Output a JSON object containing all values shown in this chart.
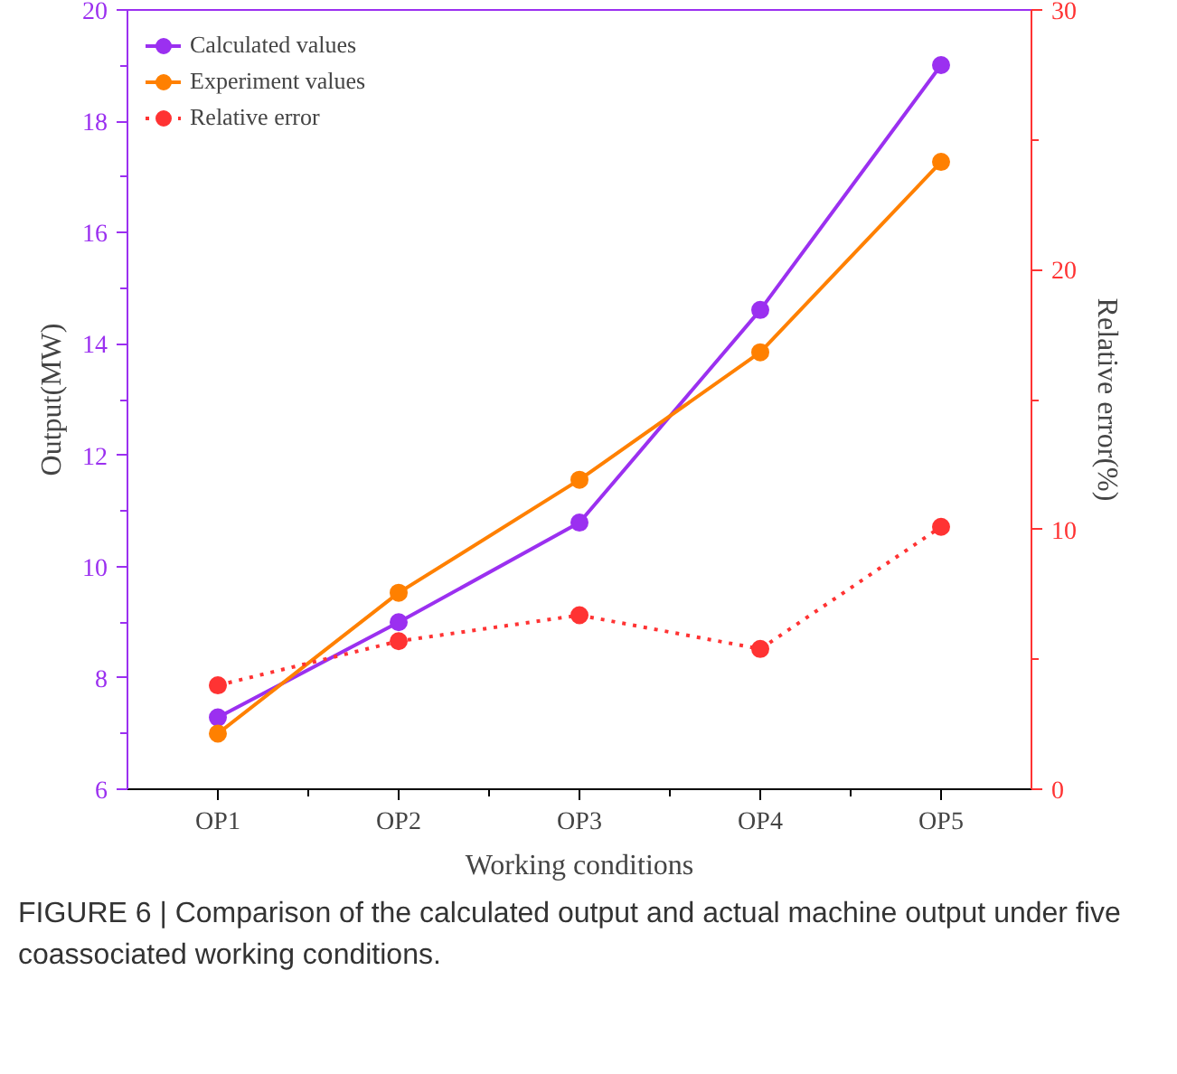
{
  "chart_data": {
    "type": "line",
    "xlabel": "Working conditions",
    "ylabel": "Output(MW)",
    "y2label": "Relative error(%)",
    "categories": [
      "OP1",
      "OP2",
      "OP3",
      "OP4",
      "OP5"
    ],
    "series": [
      {
        "name": "Calculated values",
        "color": "#9b30f0",
        "values": [
          7.29,
          9.0,
          10.79,
          14.61,
          19.01
        ],
        "line_style": "solid"
      },
      {
        "name": "Experiment values",
        "color": "#ff8000",
        "values": [
          7.0,
          9.53,
          11.56,
          13.85,
          17.27
        ],
        "line_style": "solid"
      },
      {
        "name": "Relative error",
        "color": "#ff3333",
        "values": [
          4.0,
          5.7,
          6.7,
          5.4,
          10.1
        ],
        "axis": "y2",
        "line_style": "dotted"
      }
    ],
    "ylim": [
      6,
      20
    ],
    "yticks": [
      6,
      8,
      10,
      12,
      14,
      16,
      18,
      20
    ],
    "y2lim": [
      0,
      30
    ],
    "y2ticks": [
      0,
      10,
      20,
      30
    ],
    "marker": "circle",
    "legend": "top left",
    "grid": false,
    "annotations": [
      "FIGURE 6 | Comparison of the calculated output and actual machine output under five coassociated working conditions."
    ]
  }
}
